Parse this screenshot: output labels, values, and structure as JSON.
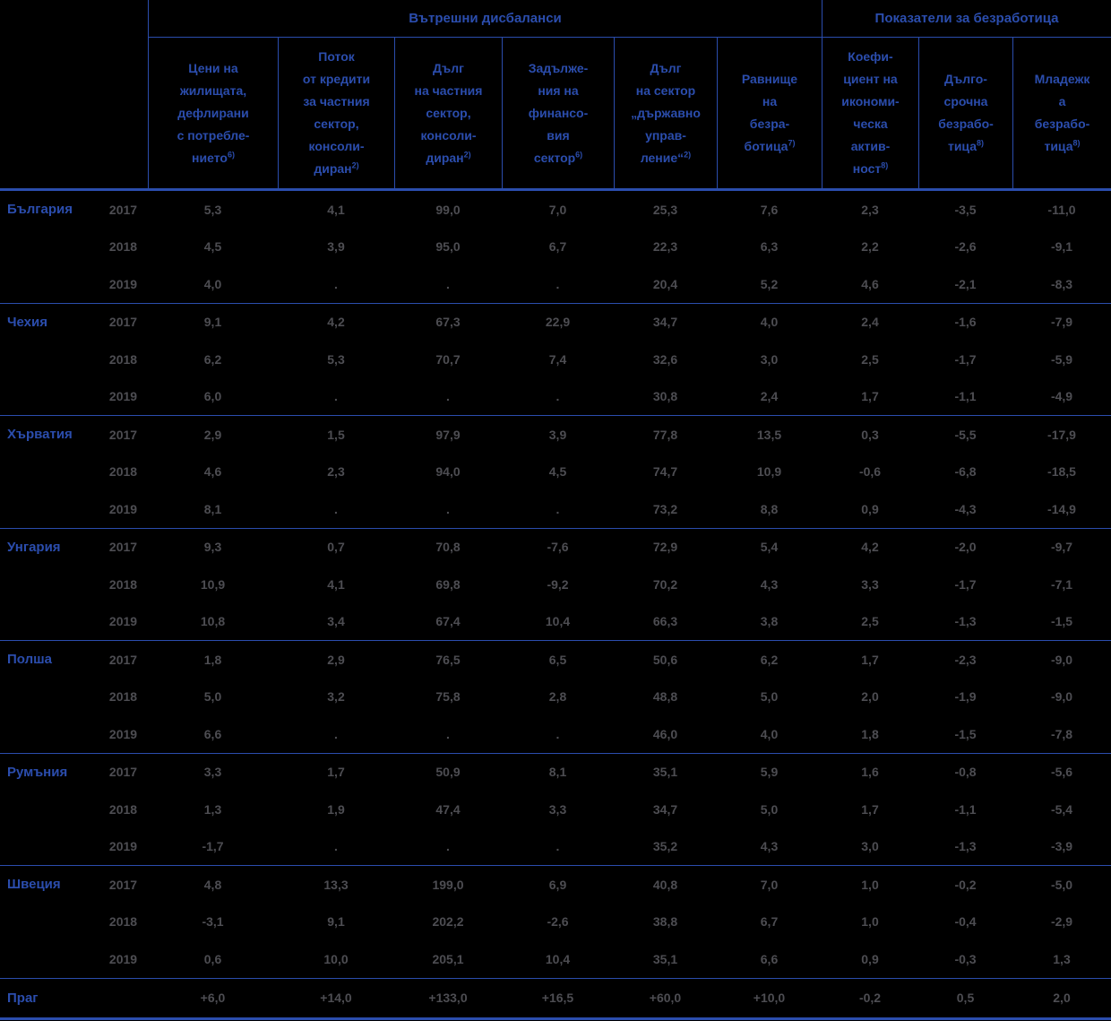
{
  "table_title": "Macroeconomic scoreboard (Bulgarian)",
  "colors": {
    "accent_blue": "#2B4DAD",
    "value_text": "#4d4d52",
    "background": "#000000"
  },
  "header": {
    "group1": "Вътрешни дисбаланси",
    "group2": "Показатели за безработица",
    "columns": [
      {
        "text": "Цени на\nжилищата,\nдефлирани\nс потребле-\nнието",
        "sup": "6)"
      },
      {
        "text": "Поток\nот кредити\nза частния\nсектор,\nконсоли-\nдиран",
        "sup": "2)"
      },
      {
        "text": "Дълг\nна частния\nсектор,\nконсоли-\nдиран",
        "sup": "2)"
      },
      {
        "text": "Задълже-\nния на\nфинансо-\nвия\nсектор",
        "sup": "6)"
      },
      {
        "text": "Дълг\nна сектор\n„държавно\nуправ-\nление“",
        "sup": "2)"
      },
      {
        "text": "Равнище\nна\nбезра-\nботица",
        "sup": "7)"
      },
      {
        "text": "Коефи-\nциент на\nикономи-\nческа\nактив-\nност",
        "sup": "8)"
      },
      {
        "text": "Дълго-\nсрочна\nбезрабо-\nтица",
        "sup": "8)"
      },
      {
        "text": "Младежк\nа\nбезрабо-\nтица",
        "sup": "8)"
      }
    ]
  },
  "countries": [
    {
      "name": "България",
      "years": [
        {
          "year": "2017",
          "values": [
            "5,3",
            "4,1",
            "99,0",
            "7,0",
            "25,3",
            "7,6",
            "2,3",
            "-3,5",
            "-11,0"
          ]
        },
        {
          "year": "2018",
          "values": [
            "4,5",
            "3,9",
            "95,0",
            "6,7",
            "22,3",
            "6,3",
            "2,2",
            "-2,6",
            "-9,1"
          ]
        },
        {
          "year": "2019",
          "values": [
            "4,0",
            ".",
            ".",
            ".",
            "20,4",
            "5,2",
            "4,6",
            "-2,1",
            "-8,3"
          ]
        }
      ]
    },
    {
      "name": "Чехия",
      "years": [
        {
          "year": "2017",
          "values": [
            "9,1",
            "4,2",
            "67,3",
            "22,9",
            "34,7",
            "4,0",
            "2,4",
            "-1,6",
            "-7,9"
          ]
        },
        {
          "year": "2018",
          "values": [
            "6,2",
            "5,3",
            "70,7",
            "7,4",
            "32,6",
            "3,0",
            "2,5",
            "-1,7",
            "-5,9"
          ]
        },
        {
          "year": "2019",
          "values": [
            "6,0",
            ".",
            ".",
            ".",
            "30,8",
            "2,4",
            "1,7",
            "-1,1",
            "-4,9"
          ]
        }
      ]
    },
    {
      "name": "Хърватия",
      "years": [
        {
          "year": "2017",
          "values": [
            "2,9",
            "1,5",
            "97,9",
            "3,9",
            "77,8",
            "13,5",
            "0,3",
            "-5,5",
            "-17,9"
          ]
        },
        {
          "year": "2018",
          "values": [
            "4,6",
            "2,3",
            "94,0",
            "4,5",
            "74,7",
            "10,9",
            "-0,6",
            "-6,8",
            "-18,5"
          ]
        },
        {
          "year": "2019",
          "values": [
            "8,1",
            ".",
            ".",
            ".",
            "73,2",
            "8,8",
            "0,9",
            "-4,3",
            "-14,9"
          ]
        }
      ]
    },
    {
      "name": "Унгария",
      "years": [
        {
          "year": "2017",
          "values": [
            "9,3",
            "0,7",
            "70,8",
            "-7,6",
            "72,9",
            "5,4",
            "4,2",
            "-2,0",
            "-9,7"
          ]
        },
        {
          "year": "2018",
          "values": [
            "10,9",
            "4,1",
            "69,8",
            "-9,2",
            "70,2",
            "4,3",
            "3,3",
            "-1,7",
            "-7,1"
          ]
        },
        {
          "year": "2019",
          "values": [
            "10,8",
            "3,4",
            "67,4",
            "10,4",
            "66,3",
            "3,8",
            "2,5",
            "-1,3",
            "-1,5"
          ]
        }
      ]
    },
    {
      "name": "Полша",
      "years": [
        {
          "year": "2017",
          "values": [
            "1,8",
            "2,9",
            "76,5",
            "6,5",
            "50,6",
            "6,2",
            "1,7",
            "-2,3",
            "-9,0"
          ]
        },
        {
          "year": "2018",
          "values": [
            "5,0",
            "3,2",
            "75,8",
            "2,8",
            "48,8",
            "5,0",
            "2,0",
            "-1,9",
            "-9,0"
          ]
        },
        {
          "year": "2019",
          "values": [
            "6,6",
            ".",
            ".",
            ".",
            "46,0",
            "4,0",
            "1,8",
            "-1,5",
            "-7,8"
          ]
        }
      ]
    },
    {
      "name": "Румъния",
      "years": [
        {
          "year": "2017",
          "values": [
            "3,3",
            "1,7",
            "50,9",
            "8,1",
            "35,1",
            "5,9",
            "1,6",
            "-0,8",
            "-5,6"
          ]
        },
        {
          "year": "2018",
          "values": [
            "1,3",
            "1,9",
            "47,4",
            "3,3",
            "34,7",
            "5,0",
            "1,7",
            "-1,1",
            "-5,4"
          ]
        },
        {
          "year": "2019",
          "values": [
            "-1,7",
            ".",
            ".",
            ".",
            "35,2",
            "4,3",
            "3,0",
            "-1,3",
            "-3,9"
          ]
        }
      ]
    },
    {
      "name": "Швеция",
      "years": [
        {
          "year": "2017",
          "values": [
            "4,8",
            "13,3",
            "199,0",
            "6,9",
            "40,8",
            "7,0",
            "1,0",
            "-0,2",
            "-5,0"
          ]
        },
        {
          "year": "2018",
          "values": [
            "-3,1",
            "9,1",
            "202,2",
            "-2,6",
            "38,8",
            "6,7",
            "1,0",
            "-0,4",
            "-2,9"
          ]
        },
        {
          "year": "2019",
          "values": [
            "0,6",
            "10,0",
            "205,1",
            "10,4",
            "35,1",
            "6,6",
            "0,9",
            "-0,3",
            "1,3"
          ]
        }
      ]
    }
  ],
  "threshold": {
    "label": "Праг",
    "values": [
      "+6,0",
      "+14,0",
      "+133,0",
      "+16,5",
      "+60,0",
      "+10,0",
      "-0,2",
      "0,5",
      "2,0"
    ]
  }
}
